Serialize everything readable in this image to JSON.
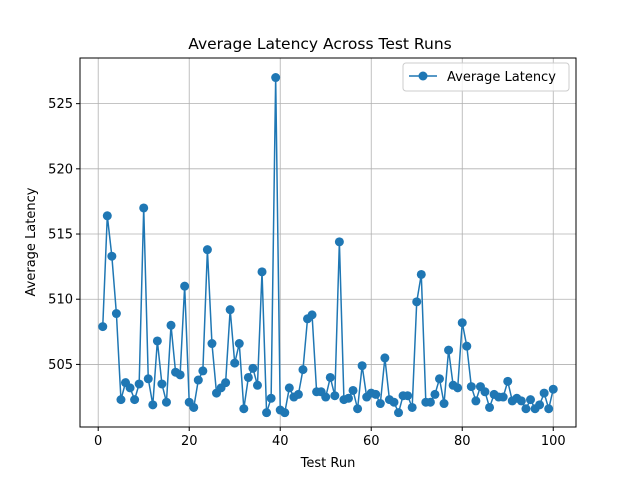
{
  "chart_data": {
    "type": "line",
    "title": "Average Latency Across Test Runs",
    "xlabel": "Test Run",
    "ylabel": "Average Latency",
    "xlim": [
      -4,
      105
    ],
    "ylim": [
      500.2,
      528.5
    ],
    "xticks": [
      0,
      20,
      40,
      60,
      80,
      100
    ],
    "yticks": [
      505,
      510,
      515,
      520,
      525
    ],
    "grid": true,
    "legend_position": "top-right",
    "series": [
      {
        "name": "Average Latency",
        "color": "#1f77b4",
        "marker": "circle",
        "x": [
          1,
          2,
          3,
          4,
          5,
          6,
          7,
          8,
          9,
          10,
          11,
          12,
          13,
          14,
          15,
          16,
          17,
          18,
          19,
          20,
          21,
          22,
          23,
          24,
          25,
          26,
          27,
          28,
          29,
          30,
          31,
          32,
          33,
          34,
          35,
          36,
          37,
          38,
          39,
          40,
          41,
          42,
          43,
          44,
          45,
          46,
          47,
          48,
          49,
          50,
          51,
          52,
          53,
          54,
          55,
          56,
          57,
          58,
          59,
          60,
          61,
          62,
          63,
          64,
          65,
          66,
          67,
          68,
          69,
          70,
          71,
          72,
          73,
          74,
          75,
          76,
          77,
          78,
          79,
          80,
          81,
          82,
          83,
          84,
          85,
          86,
          87,
          88,
          89,
          90,
          91,
          92,
          93,
          94,
          95,
          96,
          97,
          98,
          99,
          100
        ],
        "y": [
          507.9,
          516.4,
          513.3,
          508.9,
          502.3,
          503.6,
          503.2,
          502.3,
          503.5,
          517.0,
          503.9,
          501.9,
          506.8,
          503.5,
          502.1,
          508.0,
          504.4,
          504.2,
          511.0,
          502.1,
          501.7,
          503.8,
          504.5,
          513.8,
          506.6,
          502.8,
          503.2,
          503.6,
          509.2,
          505.1,
          506.6,
          501.6,
          504.0,
          504.7,
          503.4,
          512.1,
          501.3,
          502.4,
          527.0,
          501.5,
          501.3,
          503.2,
          502.5,
          502.7,
          504.6,
          508.5,
          508.8,
          502.9,
          502.9,
          502.5,
          504.0,
          502.6,
          514.4,
          502.3,
          502.4,
          503.0,
          501.6,
          504.9,
          502.5,
          502.8,
          502.7,
          502.0,
          505.5,
          502.3,
          502.1,
          501.3,
          502.6,
          502.6,
          501.7,
          509.8,
          511.9,
          502.1,
          502.1,
          502.7,
          503.9,
          502.0,
          506.1,
          503.4,
          503.2,
          508.2,
          506.4,
          503.3,
          502.2,
          503.3,
          502.9,
          501.7,
          502.7,
          502.5,
          502.5,
          503.7,
          502.2,
          502.4,
          502.2,
          501.6,
          502.3,
          501.6,
          501.9,
          502.8,
          501.6,
          503.1
        ]
      }
    ]
  }
}
